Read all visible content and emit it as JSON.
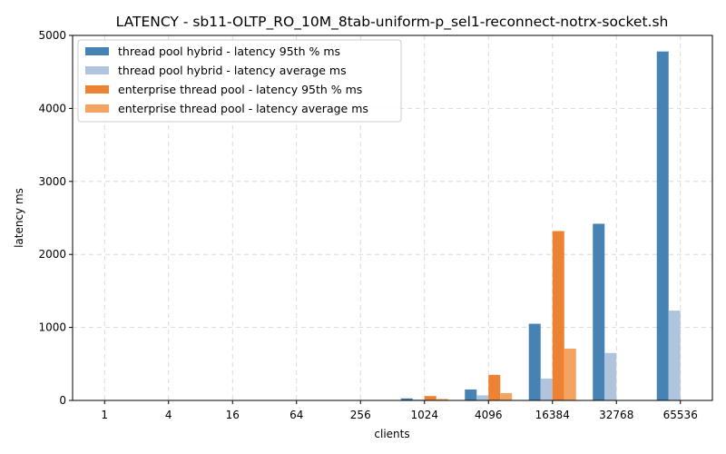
{
  "chart_data": {
    "type": "bar",
    "title": "LATENCY - sb11-OLTP_RO_10M_8tab-uniform-p_sel1-reconnect-notrx-socket.sh",
    "xlabel": "clients",
    "ylabel": "latency ms",
    "categories": [
      "1",
      "4",
      "16",
      "64",
      "256",
      "1024",
      "4096",
      "16384",
      "32768",
      "65536"
    ],
    "ylim": [
      0,
      5000
    ],
    "yticks": [
      0,
      1000,
      2000,
      3000,
      4000,
      5000
    ],
    "grid": true,
    "legend_position": "top-left",
    "series": [
      {
        "name": "thread pool hybrid - latency 95th % ms",
        "color": "#4682b4",
        "values": [
          1,
          1,
          6,
          1,
          4,
          28,
          150,
          1050,
          2420,
          4780
        ]
      },
      {
        "name": "thread pool hybrid - latency average ms",
        "color": "#b0c4de",
        "values": [
          0.5,
          0.5,
          2,
          0.5,
          2,
          12,
          70,
          300,
          650,
          1230
        ]
      },
      {
        "name": "enterprise thread pool - latency 95th % ms",
        "color": "#ed8233",
        "values": [
          1,
          1,
          5,
          1,
          4,
          60,
          350,
          2320,
          0,
          0
        ]
      },
      {
        "name": "enterprise thread pool - latency average ms",
        "color": "#f4a460",
        "values": [
          0.5,
          0.5,
          2,
          0.5,
          2,
          20,
          100,
          710,
          0,
          0
        ]
      }
    ]
  }
}
